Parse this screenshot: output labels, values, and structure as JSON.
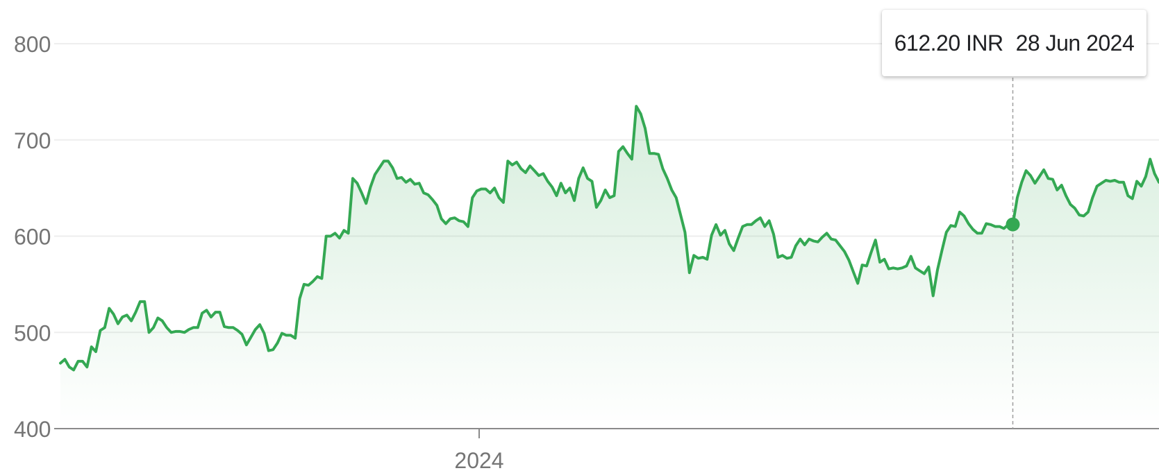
{
  "chart_data": {
    "type": "area",
    "currency": "INR",
    "line_color": "#34a853",
    "y_ticks": [
      "800",
      "700",
      "600",
      "500",
      "400"
    ],
    "x_ticks": [
      "2024"
    ],
    "ylim": [
      400,
      800
    ],
    "grid": true,
    "tooltip": {
      "value": "612.20 INR",
      "date": "28 Jun 2024"
    },
    "series": [
      {
        "values": [
          468,
          472,
          464,
          461,
          470,
          470,
          464,
          485,
          480,
          502,
          505,
          525,
          519,
          509,
          516,
          518,
          512,
          521,
          532,
          532,
          500,
          505,
          515,
          512,
          505,
          500,
          501,
          501,
          500,
          503,
          505,
          505,
          520,
          523,
          516,
          521,
          521,
          506,
          505,
          505,
          502,
          498,
          487,
          495,
          503,
          508,
          499,
          481,
          482,
          489,
          499,
          497,
          497,
          494,
          535,
          550,
          549,
          553,
          558,
          556,
          600,
          600,
          603,
          598,
          606,
          603,
          660,
          655,
          645,
          634,
          651,
          664,
          671,
          678,
          678,
          671,
          660,
          661,
          656,
          659,
          654,
          655,
          645,
          643,
          638,
          632,
          618,
          613,
          618,
          619,
          616,
          615,
          610,
          640,
          647,
          649,
          649,
          645,
          650,
          640,
          635,
          678,
          674,
          677,
          670,
          666,
          673,
          668,
          663,
          665,
          657,
          651,
          642,
          655,
          645,
          650,
          637,
          660,
          671,
          660,
          657,
          630,
          637,
          648,
          640,
          642,
          688,
          693,
          686,
          680,
          735,
          727,
          712,
          686,
          686,
          685,
          670,
          660,
          648,
          640,
          622,
          604,
          562,
          580,
          577,
          578,
          576,
          601,
          612,
          601,
          606,
          592,
          585,
          598,
          610,
          612,
          612,
          616,
          619,
          610,
          616,
          602,
          578,
          580,
          577,
          578,
          590,
          597,
          591,
          597,
          595,
          594,
          599,
          603,
          597,
          596,
          590,
          584,
          575,
          563,
          551,
          570,
          569,
          583,
          596,
          573,
          576,
          566,
          567,
          566,
          567,
          569,
          579,
          567,
          564,
          561,
          568,
          538,
          565,
          585,
          604,
          611,
          610,
          625,
          621,
          613,
          607,
          603,
          603,
          613,
          612,
          610,
          610,
          608,
          612,
          612,
          640,
          656,
          668,
          663,
          655,
          662,
          669,
          660,
          659,
          648,
          653,
          642,
          633,
          629,
          622,
          621,
          625,
          640,
          652,
          655,
          658,
          657,
          658,
          656,
          656,
          642,
          639,
          657,
          652,
          662,
          680,
          665,
          656
        ]
      }
    ]
  }
}
